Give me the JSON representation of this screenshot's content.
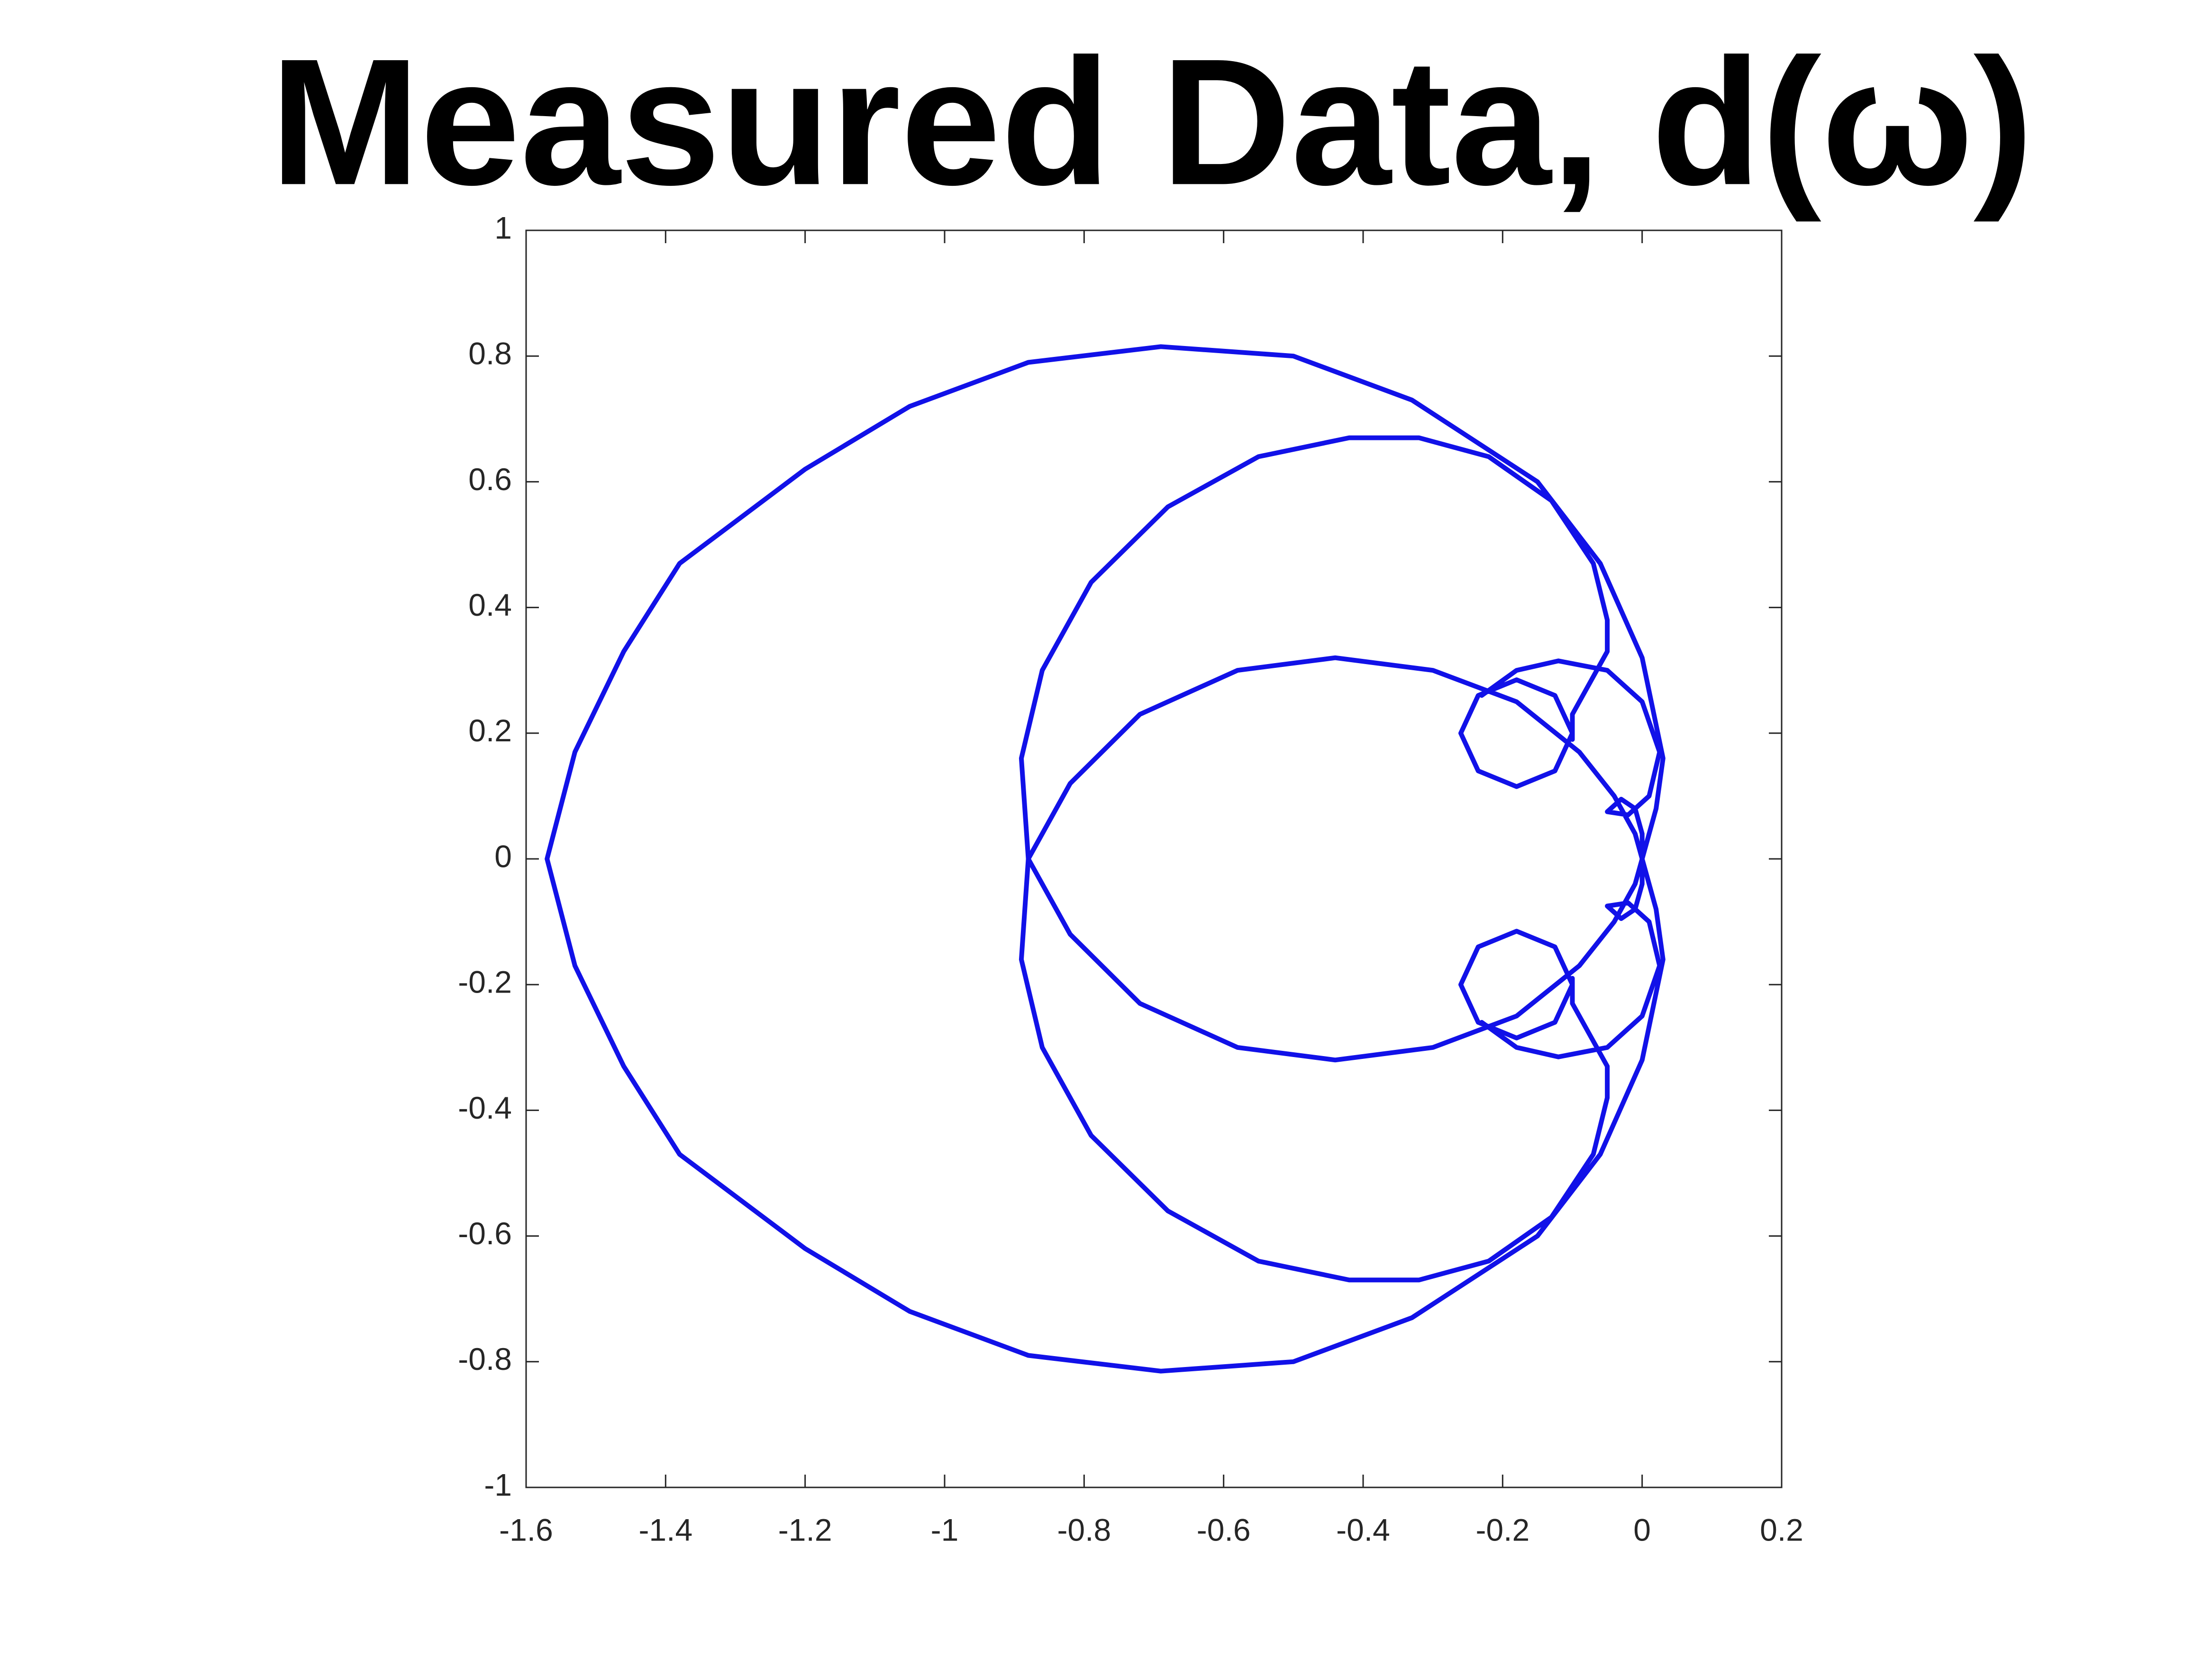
{
  "chart_data": {
    "type": "line",
    "title": "Measured Data, d(ω)",
    "color": "#1111e8",
    "xlim": [
      -1.6,
      0.2
    ],
    "ylim": [
      -1,
      1
    ],
    "xticks": [
      -1.6,
      -1.4,
      -1.2,
      -1,
      -0.8,
      -0.6,
      -0.4,
      -0.2,
      0,
      0.2
    ],
    "yticks": [
      -1,
      -0.8,
      -0.6,
      -0.4,
      -0.2,
      0,
      0.2,
      0.4,
      0.6,
      0.8,
      1
    ],
    "x": [
      -1.57,
      -1.53,
      -1.46,
      -1.38,
      -1.2,
      -1.05,
      -0.88,
      -0.69,
      -0.5,
      -0.33,
      -0.15,
      -0.06,
      0.0,
      0.03,
      0.02,
      0.0,
      0.02,
      0.03,
      0.0,
      -0.06,
      -0.15,
      -0.33,
      -0.5,
      -0.69,
      -0.88,
      -1.05,
      -1.2,
      -1.38,
      -1.46,
      -1.53,
      -1.57,
      null,
      -0.1,
      -0.1,
      -0.08,
      -0.05,
      -0.05,
      -0.07,
      -0.13,
      -0.22,
      -0.32,
      -0.42,
      -0.55,
      -0.68,
      -0.79,
      -0.86,
      -0.89,
      -0.88,
      -0.82,
      -0.72,
      -0.58,
      -0.44,
      -0.3,
      -0.18,
      -0.09,
      -0.04,
      -0.01,
      0.0,
      null,
      -0.1,
      -0.1,
      -0.08,
      -0.05,
      -0.05,
      -0.07,
      -0.13,
      -0.22,
      -0.32,
      -0.42,
      -0.55,
      -0.68,
      -0.79,
      -0.86,
      -0.89,
      -0.88,
      -0.82,
      -0.72,
      -0.58,
      -0.44,
      -0.3,
      -0.18,
      -0.09,
      -0.04,
      -0.01,
      0.0,
      null,
      -0.1,
      -0.125,
      -0.18,
      -0.235,
      -0.26,
      -0.235,
      -0.18,
      -0.125,
      -0.1,
      null,
      -0.1,
      -0.125,
      -0.18,
      -0.235,
      -0.26,
      -0.235,
      -0.18,
      -0.125,
      -0.1,
      null,
      -0.23,
      -0.18,
      -0.12,
      -0.05,
      0.0,
      0.025,
      0.01,
      -0.02,
      -0.05,
      -0.03,
      -0.01,
      0.0,
      0.0,
      null,
      -0.23,
      -0.18,
      -0.12,
      -0.05,
      0.0,
      0.025,
      0.01,
      -0.02,
      -0.05,
      -0.03,
      -0.01,
      0.0,
      0.0
    ],
    "y": [
      0,
      0.17,
      0.33,
      0.47,
      0.62,
      0.72,
      0.79,
      0.815,
      0.8,
      0.73,
      0.6,
      0.47,
      0.32,
      0.16,
      0.08,
      0,
      -0.08,
      -0.16,
      -0.32,
      -0.47,
      -0.6,
      -0.73,
      -0.8,
      -0.815,
      -0.79,
      -0.72,
      -0.62,
      -0.47,
      -0.33,
      -0.17,
      0,
      null,
      0.19,
      0.23,
      0.27,
      0.33,
      0.38,
      0.47,
      0.57,
      0.64,
      0.67,
      0.67,
      0.64,
      0.56,
      0.44,
      0.3,
      0.16,
      0.0,
      -0.12,
      -0.23,
      -0.3,
      -0.32,
      -0.3,
      -0.25,
      -0.17,
      -0.1,
      -0.04,
      0.0,
      null,
      -0.19,
      -0.23,
      -0.27,
      -0.33,
      -0.38,
      -0.47,
      -0.57,
      -0.64,
      -0.67,
      -0.67,
      -0.64,
      -0.56,
      -0.44,
      -0.3,
      -0.16,
      0.0,
      0.12,
      0.23,
      0.3,
      0.32,
      0.3,
      0.25,
      0.17,
      0.1,
      0.04,
      0.0,
      null,
      0.2,
      0.26,
      0.285,
      0.26,
      0.2,
      0.14,
      0.115,
      0.14,
      0.2,
      null,
      -0.2,
      -0.26,
      -0.285,
      -0.26,
      -0.2,
      -0.14,
      -0.115,
      -0.14,
      -0.2,
      null,
      0.26,
      0.3,
      0.315,
      0.3,
      0.25,
      0.17,
      0.1,
      0.07,
      0.075,
      0.095,
      0.08,
      0.04,
      0.0,
      null,
      -0.26,
      -0.3,
      -0.315,
      -0.3,
      -0.25,
      -0.17,
      -0.1,
      -0.07,
      -0.075,
      -0.095,
      -0.08,
      -0.04,
      0.0
    ]
  }
}
